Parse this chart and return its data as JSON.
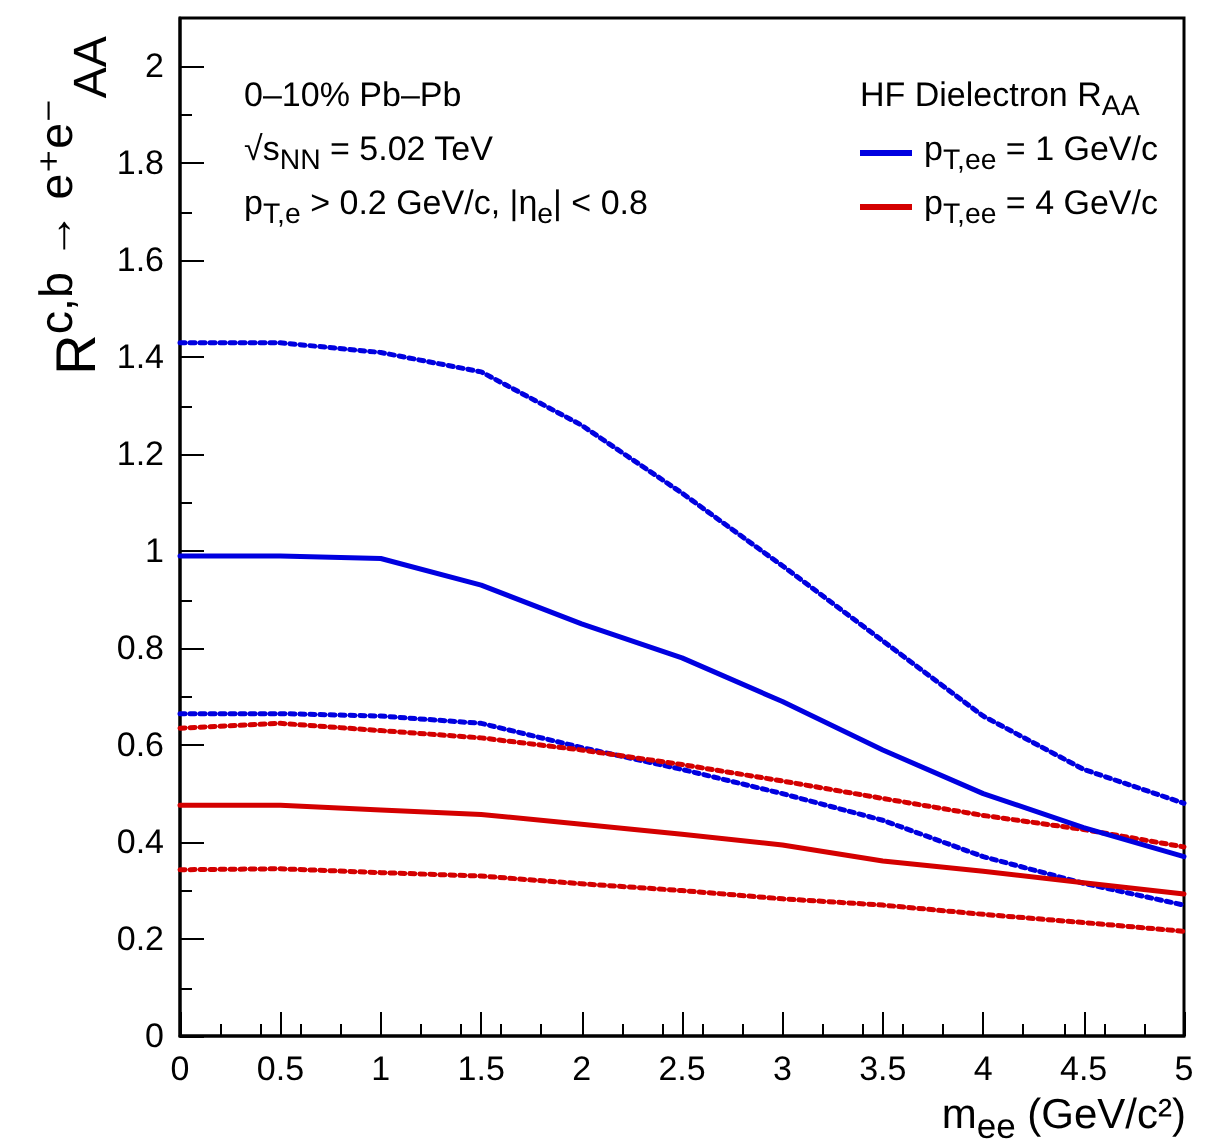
{
  "chart_data": {
    "type": "line",
    "xlabel": "m$_{ee}$ (GeV/c²)",
    "ylabel": "R$^{c,b → e⁺e⁻}$$_{AA}$",
    "legend_title": "HF Dielectron R$_{AA}$",
    "legend": "top right",
    "annotations": [
      "0–10% Pb–Pb",
      "√s$_{NN}$ = 5.02 TeV",
      "p$_{T,e}$ > 0.2 GeV/c, |η$_{e}$| < 0.8"
    ],
    "x": [
      0,
      0.5,
      1,
      1.5,
      2,
      2.5,
      3,
      3.5,
      4,
      4.5,
      5
    ],
    "series": [
      {
        "name": "p$_{T,ee}$ = 1 GeV/c",
        "color": "#0000e0",
        "values": [
          0.99,
          0.99,
          0.985,
          0.93,
          0.85,
          0.78,
          0.69,
          0.59,
          0.5,
          0.43,
          0.37
        ]
      },
      {
        "name": "p$_{T,ee}$ = 4 GeV/c",
        "color": "#d40000",
        "values": [
          0.476,
          0.476,
          0.466,
          0.457,
          0.437,
          0.416,
          0.394,
          0.361,
          0.34,
          0.316,
          0.293
        ]
      },
      {
        "color": "#0000e0",
        "line_style": "dotted",
        "values": [
          1.43,
          1.43,
          1.41,
          1.37,
          1.26,
          1.12,
          0.97,
          0.815,
          0.66,
          0.55,
          0.48
        ]
      },
      {
        "color": "#0000e0",
        "line_style": "dotted",
        "values": [
          0.665,
          0.665,
          0.66,
          0.645,
          0.595,
          0.55,
          0.5,
          0.445,
          0.37,
          0.315,
          0.27
        ]
      },
      {
        "color": "#d40000",
        "line_style": "dotted",
        "values": [
          0.635,
          0.645,
          0.63,
          0.615,
          0.59,
          0.56,
          0.526,
          0.49,
          0.455,
          0.426,
          0.39
        ]
      },
      {
        "color": "#d40000",
        "line_style": "dotted",
        "values": [
          0.343,
          0.345,
          0.337,
          0.33,
          0.314,
          0.3,
          0.283,
          0.27,
          0.251,
          0.234,
          0.216
        ]
      }
    ],
    "xlim": [
      0,
      5
    ],
    "xticks": [
      0,
      0.5,
      1,
      1.5,
      2,
      2.5,
      3,
      3.5,
      4,
      4.5,
      5
    ],
    "ylim": [
      0,
      2.1
    ],
    "yticks": [
      0,
      0.2,
      0.4,
      0.6,
      0.8,
      1,
      1.2,
      1.4,
      1.6,
      1.8,
      2
    ],
    "line_style": "solid",
    "marker": "none"
  }
}
